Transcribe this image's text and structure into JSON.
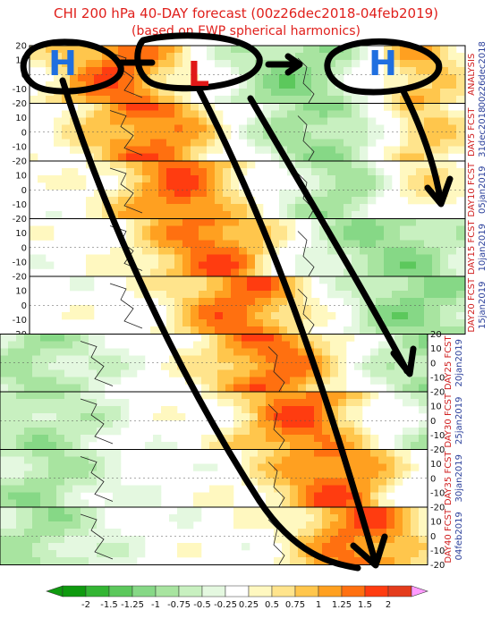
{
  "chart_data": {
    "type": "heatmap",
    "title": "CHI 200 hPa 40-DAY forecast (00z26dec2018-04feb2019)",
    "subtitle": "(based on EWP spherical harmonics)",
    "panels": [
      {
        "label": "ANALYSIS",
        "date": "00z26dec2018"
      },
      {
        "label": "DAY5 FCST",
        "date": "31dec2018"
      },
      {
        "label": "DAY10 FCST",
        "date": "05jan2019"
      },
      {
        "label": "DAY15 FCST",
        "date": "10jan2019"
      },
      {
        "label": "DAY20 FCST",
        "date": "15jan2019"
      },
      {
        "label": "DAY25 FCST",
        "date": "20jan2019"
      },
      {
        "label": "DAY30 FCST",
        "date": "25jan2019"
      },
      {
        "label": "DAY35 FCST",
        "date": "30jan2019"
      },
      {
        "label": "DAY40 FCST",
        "date": "04feb2019"
      }
    ],
    "lat_ticks": [
      "20",
      "10",
      "0",
      "-10",
      "-20"
    ],
    "colorbar": {
      "ticks": [
        "-2",
        "-1.5",
        "-1.25",
        "-1",
        "-0.75",
        "-0.5",
        "-0.25",
        "0.25",
        "0.5",
        "0.75",
        "1",
        "1.25",
        "1.5",
        "2"
      ],
      "colors": [
        "#0f9a0f",
        "#33b533",
        "#5cc85c",
        "#86d886",
        "#a8e4a0",
        "#c8f0c0",
        "#e4f8e0",
        "#ffffff",
        "#fff8c0",
        "#ffe48c",
        "#ffc64c",
        "#ffa020",
        "#ff7010",
        "#ff3c10",
        "#e43c1c"
      ],
      "under_color": "#0f9a0f",
      "over_color": "#ff9bff"
    },
    "annotations": {
      "highs": [
        "H",
        "H"
      ],
      "lows": [
        "L"
      ]
    }
  }
}
